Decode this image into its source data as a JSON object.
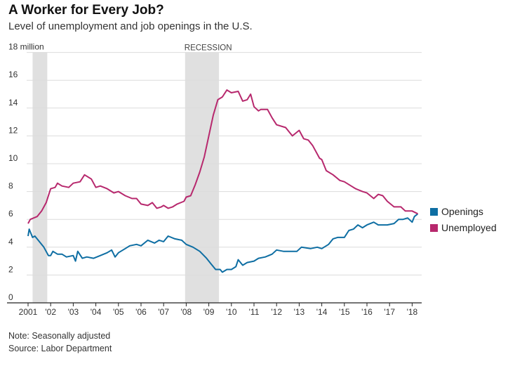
{
  "header": {
    "title": "A Worker for Every Job?",
    "subtitle": "Level of unemployment and job openings in the U.S."
  },
  "footer": {
    "note": "Note: Seasonally adjusted",
    "source": "Source: Labor Department"
  },
  "chart_data": {
    "type": "line",
    "title": "A Worker for Every Job?",
    "ylabel": "million",
    "ylim": [
      0,
      18
    ],
    "xlim": [
      2001,
      2018.4
    ],
    "grid": true,
    "legend_position": "right",
    "y_ticks": [
      0,
      2,
      4,
      6,
      8,
      10,
      12,
      14,
      16,
      18
    ],
    "y_tick_labels": [
      "0",
      "2",
      "4",
      "6",
      "8",
      "10",
      "12",
      "14",
      "16",
      "18 million"
    ],
    "x_ticks": [
      2001,
      2002,
      2003,
      2004,
      2005,
      2006,
      2007,
      2008,
      2009,
      2010,
      2011,
      2012,
      2013,
      2014,
      2015,
      2016,
      2017,
      2018
    ],
    "x_tick_labels": [
      "2001",
      "'02",
      "'03",
      "'04",
      "'05",
      "'06",
      "'07",
      "'08",
      "'09",
      "'10",
      "'11",
      "'12",
      "'13",
      "'14",
      "'15",
      "'16",
      "'17",
      "'18"
    ],
    "recessions": [
      {
        "start": 2001.2,
        "end": 2001.85,
        "label": ""
      },
      {
        "start": 2007.95,
        "end": 2009.45,
        "label": "RECESSION"
      }
    ],
    "series": [
      {
        "name": "Openings",
        "color": "#0e6ea3",
        "x": [
          2001.0,
          2001.05,
          2001.2,
          2001.3,
          2001.5,
          2001.7,
          2001.9,
          2002.0,
          2002.1,
          2002.3,
          2002.5,
          2002.7,
          2003.0,
          2003.1,
          2003.2,
          2003.4,
          2003.6,
          2003.9,
          2004.2,
          2004.5,
          2004.7,
          2004.85,
          2005.0,
          2005.3,
          2005.5,
          2005.8,
          2006.0,
          2006.3,
          2006.6,
          2006.8,
          2007.0,
          2007.2,
          2007.5,
          2007.8,
          2008.0,
          2008.3,
          2008.6,
          2008.9,
          2009.1,
          2009.3,
          2009.5,
          2009.6,
          2009.8,
          2010.0,
          2010.2,
          2010.3,
          2010.5,
          2010.7,
          2011.0,
          2011.2,
          2011.5,
          2011.8,
          2012.0,
          2012.3,
          2012.6,
          2012.9,
          2013.1,
          2013.5,
          2013.8,
          2014.0,
          2014.3,
          2014.5,
          2014.7,
          2015.0,
          2015.2,
          2015.4,
          2015.6,
          2015.8,
          2016.0,
          2016.3,
          2016.5,
          2016.9,
          2017.2,
          2017.4,
          2017.6,
          2017.8,
          2018.0,
          2018.1,
          2018.25
        ],
        "values": [
          4.8,
          5.3,
          4.7,
          4.8,
          4.4,
          4.0,
          3.4,
          3.4,
          3.7,
          3.5,
          3.5,
          3.3,
          3.4,
          3.0,
          3.7,
          3.2,
          3.3,
          3.2,
          3.4,
          3.6,
          3.8,
          3.3,
          3.6,
          3.9,
          4.1,
          4.2,
          4.1,
          4.5,
          4.3,
          4.5,
          4.4,
          4.8,
          4.6,
          4.5,
          4.2,
          4.0,
          3.7,
          3.2,
          2.8,
          2.4,
          2.4,
          2.2,
          2.4,
          2.4,
          2.6,
          3.1,
          2.7,
          2.9,
          3.0,
          3.2,
          3.3,
          3.5,
          3.8,
          3.7,
          3.7,
          3.7,
          4.0,
          3.9,
          4.0,
          3.9,
          4.2,
          4.6,
          4.7,
          4.7,
          5.2,
          5.3,
          5.6,
          5.4,
          5.6,
          5.8,
          5.6,
          5.6,
          5.7,
          6.0,
          6.0,
          6.1,
          5.8,
          6.2,
          6.4
        ]
      },
      {
        "name": "Unemployed",
        "color": "#b7286d",
        "x": [
          2001.0,
          2001.1,
          2001.4,
          2001.6,
          2001.8,
          2002.0,
          2002.2,
          2002.3,
          2002.5,
          2002.8,
          2003.0,
          2003.3,
          2003.5,
          2003.8,
          2004.0,
          2004.2,
          2004.5,
          2004.8,
          2005.0,
          2005.3,
          2005.6,
          2005.8,
          2006.0,
          2006.3,
          2006.5,
          2006.7,
          2006.9,
          2007.0,
          2007.2,
          2007.4,
          2007.6,
          2007.9,
          2008.0,
          2008.2,
          2008.4,
          2008.6,
          2008.8,
          2009.0,
          2009.2,
          2009.4,
          2009.6,
          2009.8,
          2010.0,
          2010.3,
          2010.5,
          2010.7,
          2010.85,
          2011.0,
          2011.2,
          2011.3,
          2011.6,
          2011.8,
          2012.0,
          2012.4,
          2012.7,
          2013.0,
          2013.2,
          2013.4,
          2013.6,
          2013.9,
          2014.0,
          2014.2,
          2014.5,
          2014.8,
          2015.0,
          2015.3,
          2015.5,
          2015.8,
          2016.0,
          2016.3,
          2016.5,
          2016.7,
          2016.9,
          2017.2,
          2017.5,
          2017.7,
          2018.0,
          2018.25
        ],
        "values": [
          5.7,
          6.0,
          6.2,
          6.6,
          7.2,
          8.2,
          8.3,
          8.6,
          8.4,
          8.3,
          8.6,
          8.7,
          9.2,
          8.9,
          8.3,
          8.4,
          8.2,
          7.9,
          8.0,
          7.7,
          7.5,
          7.5,
          7.1,
          7.0,
          7.2,
          6.8,
          6.9,
          7.0,
          6.8,
          6.9,
          7.1,
          7.3,
          7.6,
          7.7,
          8.5,
          9.4,
          10.5,
          12.0,
          13.5,
          14.6,
          14.8,
          15.3,
          15.1,
          15.2,
          14.5,
          14.6,
          15.0,
          14.1,
          13.8,
          13.9,
          13.9,
          13.3,
          12.8,
          12.6,
          12.0,
          12.4,
          11.8,
          11.7,
          11.3,
          10.4,
          10.3,
          9.5,
          9.2,
          8.8,
          8.7,
          8.4,
          8.2,
          8.0,
          7.9,
          7.5,
          7.8,
          7.7,
          7.3,
          6.9,
          6.9,
          6.6,
          6.6,
          6.4
        ]
      }
    ]
  }
}
